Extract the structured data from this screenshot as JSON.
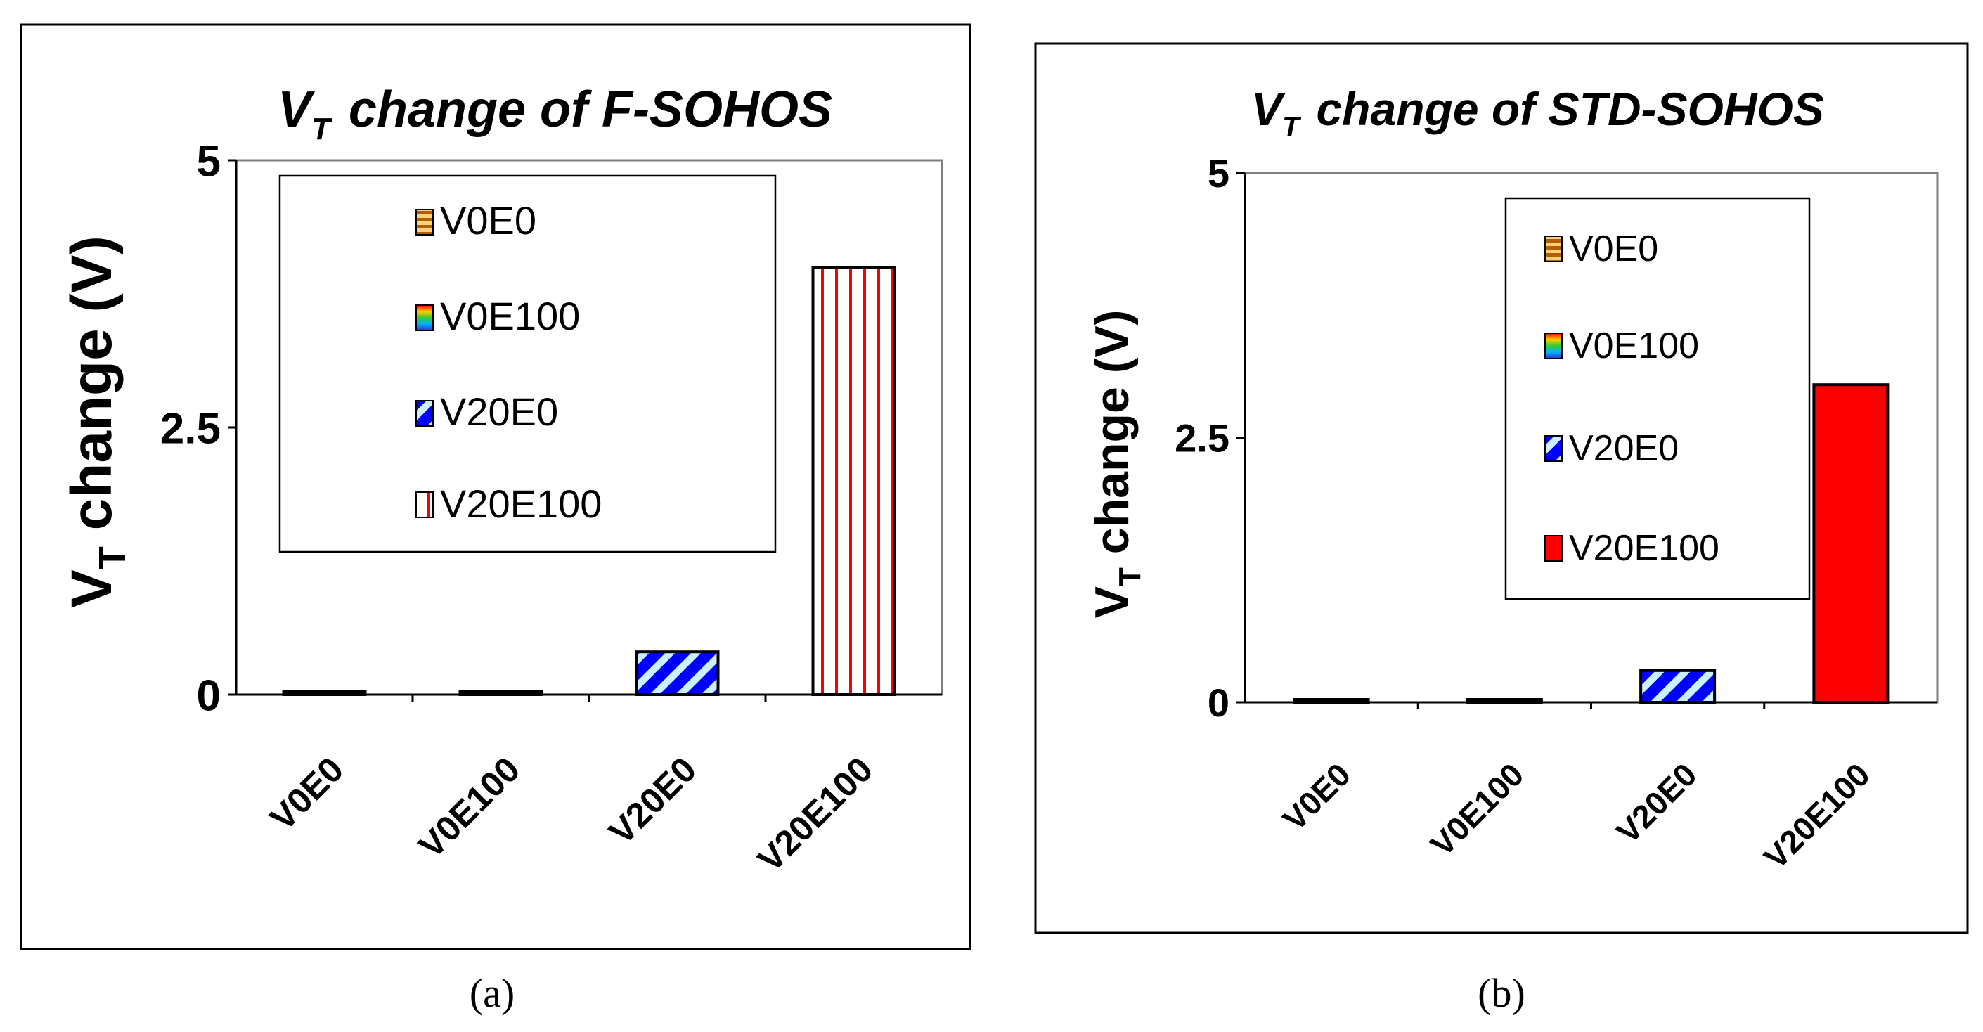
{
  "chart_data": [
    {
      "type": "bar",
      "title_prefix": "V",
      "title_sub": "T",
      "title_suffix": "change of F-SOHOS",
      "ylabel_main": "V",
      "ylabel_sub": "T",
      "ylabel_rest": " change (V)",
      "categories": [
        "V0E0",
        "V0E100",
        "V20E0",
        "V20E100"
      ],
      "values": [
        0,
        0,
        0.4,
        4.0
      ],
      "ylim": [
        0,
        5
      ],
      "yticks": [
        "0",
        "2.5",
        "5"
      ],
      "legend": [
        "V0E0",
        "V0E100",
        "V20E0",
        "V20E100"
      ],
      "caption": "(a)"
    },
    {
      "type": "bar",
      "title_prefix": "V",
      "title_sub": "T",
      "title_suffix": "change of STD-SOHOS",
      "ylabel_main": "V",
      "ylabel_sub": "T",
      "ylabel_rest": " change (V)",
      "categories": [
        "V0E0",
        "V0E100",
        "V20E0",
        "V20E100"
      ],
      "values": [
        0,
        0,
        0.3,
        3.0
      ],
      "ylim": [
        0,
        5
      ],
      "yticks": [
        "0",
        "2.5",
        "5"
      ],
      "legend": [
        "V0E0",
        "V0E100",
        "V20E0",
        "V20E100"
      ],
      "caption": "(b)"
    }
  ],
  "colors": {
    "axis": "#7f7f7f",
    "red": "#ff0000",
    "blue": "#0000ff",
    "light_blue": "#ccf0ff",
    "brown": "#c07000"
  }
}
